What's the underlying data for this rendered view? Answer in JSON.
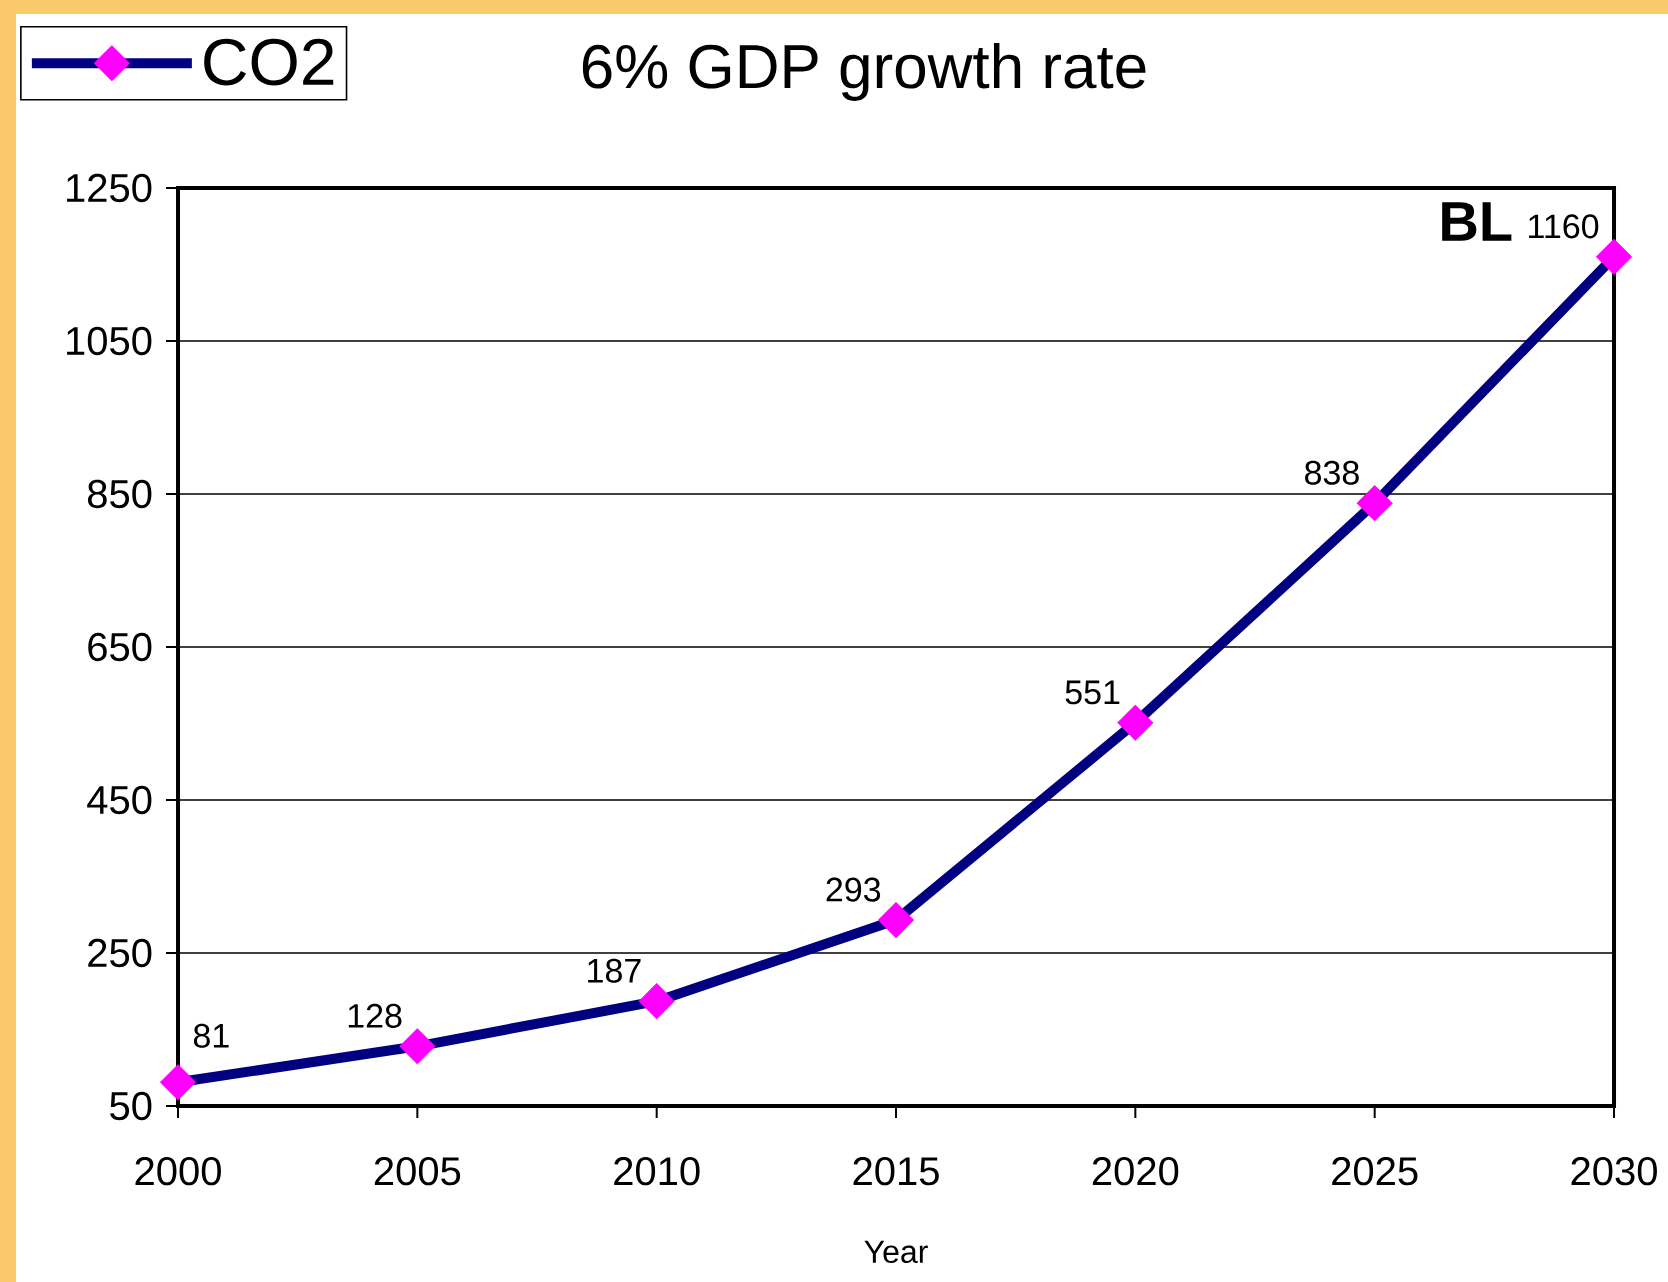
{
  "chart_data": {
    "type": "line",
    "title": "6% GDP growth rate",
    "xlabel": "Year",
    "x": [
      2000,
      2005,
      2010,
      2015,
      2020,
      2025,
      2030
    ],
    "series": [
      {
        "name": "CO2",
        "color": "#000080",
        "colors": [
          "#ff00ff",
          "#ff00ff",
          "#ff00ff",
          "#ff00ff",
          "#ff00ff",
          "#ff00ff",
          "#ff00ff"
        ],
        "values": [
          81,
          128,
          187,
          293,
          551,
          838,
          1160
        ]
      }
    ],
    "xlim": [
      2000,
      2030
    ],
    "xticks": [
      2000,
      2005,
      2010,
      2015,
      2020,
      2025,
      2030
    ],
    "ylim": [
      50,
      1250
    ],
    "yticks": [
      50,
      250,
      450,
      650,
      850,
      1050,
      1250
    ],
    "grid": "y",
    "legend": "top left",
    "marker": "diamond",
    "line_style": "solid",
    "data_labels": true,
    "annotations": [
      "BL"
    ]
  }
}
